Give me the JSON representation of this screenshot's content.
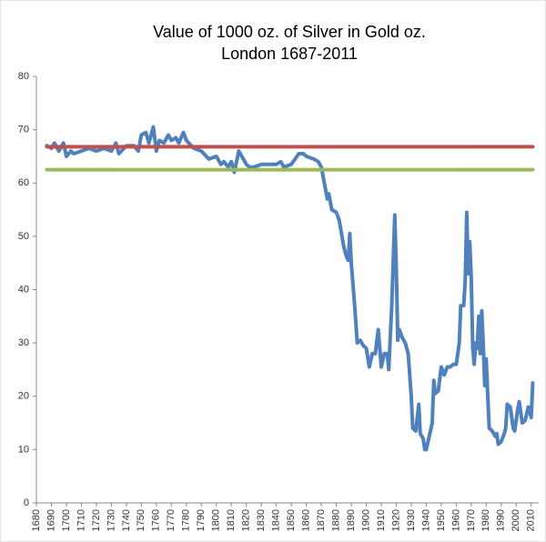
{
  "chart_data": {
    "type": "line",
    "title": "Value of 1000 oz. of Silver in Gold oz.",
    "subtitle": "London 1687-2011",
    "xlim": [
      1680,
      2015
    ],
    "xticks": [
      1680,
      1690,
      1700,
      1710,
      1720,
      1730,
      1740,
      1750,
      1760,
      1770,
      1780,
      1790,
      1800,
      1810,
      1820,
      1830,
      1840,
      1850,
      1860,
      1870,
      1880,
      1890,
      1900,
      1910,
      1920,
      1930,
      1940,
      1950,
      1960,
      1970,
      1980,
      1990,
      2000,
      2010
    ],
    "ylim": [
      0,
      80
    ],
    "yticks": [
      0,
      10,
      20,
      30,
      40,
      50,
      60,
      70,
      80
    ],
    "grid": false,
    "series": [
      {
        "color": "#4f81bd",
        "x": [
          1687,
          1690,
          1692,
          1695,
          1698,
          1700,
          1703,
          1705,
          1710,
          1715,
          1720,
          1725,
          1730,
          1733,
          1735,
          1740,
          1745,
          1748,
          1750,
          1753,
          1755,
          1758,
          1760,
          1762,
          1765,
          1768,
          1770,
          1773,
          1775,
          1778,
          1780,
          1785,
          1790,
          1795,
          1800,
          1803,
          1805,
          1808,
          1810,
          1812,
          1815,
          1818,
          1820,
          1822,
          1825,
          1830,
          1835,
          1840,
          1843,
          1845,
          1850,
          1855,
          1858,
          1860,
          1865,
          1868,
          1870,
          1872,
          1874,
          1875,
          1877,
          1880,
          1882,
          1885,
          1887,
          1888,
          1889,
          1890,
          1892,
          1894,
          1896,
          1898,
          1900,
          1902,
          1904,
          1906,
          1908,
          1910,
          1912,
          1914,
          1915,
          1917,
          1919,
          1920,
          1921,
          1922,
          1924,
          1926,
          1928,
          1930,
          1931,
          1933,
          1935,
          1936,
          1938,
          1939,
          1940,
          1942,
          1944,
          1945,
          1946,
          1948,
          1950,
          1952,
          1954,
          1956,
          1958,
          1960,
          1962,
          1963,
          1965,
          1966,
          1967,
          1968,
          1969,
          1970,
          1971,
          1972,
          1973,
          1974,
          1975,
          1976,
          1977,
          1978,
          1979,
          1980,
          1981,
          1982,
          1984,
          1986,
          1987,
          1988,
          1990,
          1992,
          1993,
          1994,
          1996,
          1998,
          1999,
          2001,
          2002,
          2004,
          2006,
          2008,
          2010,
          2011
        ],
        "values": [
          67,
          66.5,
          67.5,
          66,
          67.5,
          65,
          66,
          65.5,
          66,
          66.5,
          66,
          66.5,
          66,
          67.5,
          65.5,
          67,
          67,
          66,
          69,
          69.5,
          67.5,
          70.5,
          66,
          68,
          67.5,
          69,
          68,
          68.5,
          67.5,
          69.5,
          68,
          66.5,
          66,
          64.5,
          65,
          63.5,
          64,
          63,
          64,
          62,
          66,
          64.5,
          63.5,
          63,
          63,
          63.5,
          63.5,
          63.5,
          64,
          63,
          63.5,
          65.5,
          65.5,
          65,
          64.5,
          64,
          63,
          60,
          57,
          58,
          55,
          54.5,
          53,
          48,
          46,
          45.5,
          50.5,
          45,
          38,
          30,
          30.5,
          29.5,
          29,
          25.5,
          28,
          28,
          32.5,
          25.5,
          28,
          28,
          25,
          37,
          54,
          44,
          30.5,
          32.5,
          31,
          30,
          28,
          20,
          14,
          13.5,
          18.5,
          13,
          12,
          10,
          10,
          12.5,
          15,
          23,
          20.5,
          21,
          25.5,
          24,
          25.5,
          25.5,
          26,
          26,
          30,
          37,
          37,
          42,
          54.5,
          43,
          49,
          42,
          29,
          26,
          30,
          29,
          35,
          28,
          36,
          30,
          22,
          27,
          20,
          14,
          13.5,
          12.5,
          13,
          11,
          11.5,
          13,
          14,
          18.5,
          18,
          14,
          13.5,
          17.5,
          19,
          15,
          15.5,
          18,
          16,
          22.5
        ]
      },
      {
        "color": "#c0504d",
        "x": [
          1687,
          2011
        ],
        "values": [
          66.8,
          66.8
        ]
      },
      {
        "color": "#9bbb59",
        "x": [
          1687,
          2011
        ],
        "values": [
          62.5,
          62.5
        ]
      }
    ]
  }
}
